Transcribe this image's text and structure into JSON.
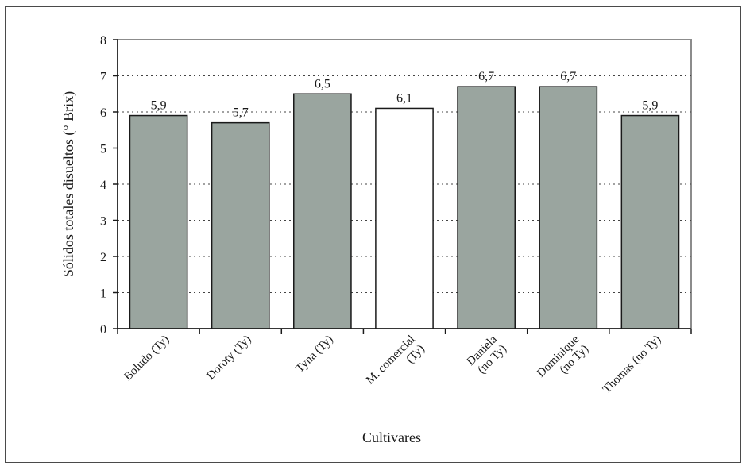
{
  "chart_data": {
    "type": "bar",
    "categories": [
      [
        "Boludo (Ty)"
      ],
      [
        "Doroty (Ty)"
      ],
      [
        "Tyna (Ty)"
      ],
      [
        "M. comercial",
        "(Ty)"
      ],
      [
        "Daniela",
        "(no Ty)"
      ],
      [
        "Dominique",
        "(no Ty)"
      ],
      [
        "Thomas (no Ty)"
      ]
    ],
    "values": [
      5.9,
      5.7,
      6.5,
      6.1,
      6.7,
      6.7,
      5.9
    ],
    "data_labels": [
      "5,9",
      "5,7",
      "6,5",
      "6,1",
      "6,7",
      "6,7",
      "5,9"
    ],
    "bar_colors": [
      "#9aa59f",
      "#9aa59f",
      "#9aa59f",
      "#ffffff",
      "#9aa59f",
      "#9aa59f",
      "#9aa59f"
    ],
    "xlabel": "Cultivares",
    "ylabel": "Sólidos totales disueltos (° Brix)",
    "ylim": [
      0,
      8
    ],
    "yticks": [
      "0",
      "1",
      "2",
      "3",
      "4",
      "5",
      "6",
      "7",
      "8"
    ],
    "grid": "dotted horizontal",
    "reference_line": 6
  }
}
